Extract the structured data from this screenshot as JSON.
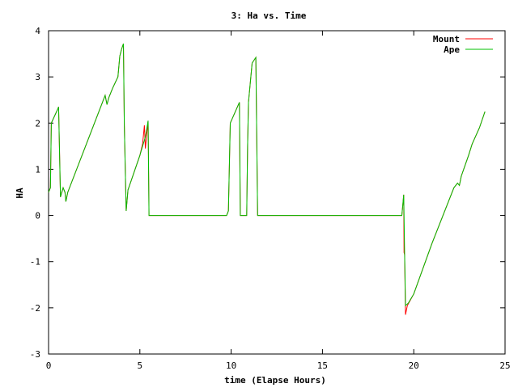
{
  "chart_data": {
    "type": "line",
    "title": "3: Ha vs. Time",
    "xlabel": "time (Elapse Hours)",
    "ylabel": "HA",
    "xlim": [
      0,
      25
    ],
    "ylim": [
      -3,
      4
    ],
    "xticks": [
      0,
      5,
      10,
      15,
      20,
      25
    ],
    "yticks": [
      -3,
      -2,
      -1,
      0,
      1,
      2,
      3,
      4
    ],
    "grid": false,
    "legend_position": "top-right",
    "series": [
      {
        "name": "Mount",
        "color": "#ff0000",
        "points": [
          [
            0,
            0.5
          ],
          [
            0.1,
            0.6
          ],
          [
            0.15,
            2.0
          ],
          [
            0.5,
            2.3
          ],
          [
            0.55,
            2.35
          ],
          [
            0.65,
            0.4
          ],
          [
            0.8,
            0.6
          ],
          [
            0.9,
            0.5
          ],
          [
            0.95,
            0.3
          ],
          [
            1.05,
            0.5
          ],
          [
            3.1,
            2.6
          ],
          [
            3.2,
            2.4
          ],
          [
            3.3,
            2.55
          ],
          [
            3.5,
            2.75
          ],
          [
            3.8,
            3.0
          ],
          [
            3.9,
            3.45
          ],
          [
            4.0,
            3.6
          ],
          [
            4.1,
            3.72
          ],
          [
            4.15,
            1.95
          ],
          [
            4.25,
            0.1
          ],
          [
            4.35,
            0.55
          ],
          [
            5.0,
            1.3
          ],
          [
            5.15,
            1.55
          ],
          [
            5.25,
            1.95
          ],
          [
            5.3,
            1.45
          ],
          [
            5.45,
            2.05
          ],
          [
            5.5,
            0.0
          ],
          [
            9.75,
            0.0
          ],
          [
            9.85,
            0.1
          ],
          [
            9.95,
            2.0
          ],
          [
            10.45,
            2.45
          ],
          [
            10.5,
            0.0
          ],
          [
            10.85,
            0.0
          ],
          [
            10.9,
            1.5
          ],
          [
            10.95,
            2.45
          ],
          [
            11.15,
            3.3
          ],
          [
            11.35,
            3.42
          ],
          [
            11.45,
            0.0
          ],
          [
            19.35,
            0.0
          ],
          [
            19.45,
            0.45
          ],
          [
            19.47,
            -0.8
          ],
          [
            19.5,
            -0.85
          ],
          [
            19.55,
            -2.15
          ],
          [
            19.65,
            -1.95
          ],
          [
            20.0,
            -1.7
          ],
          [
            21.0,
            -0.6
          ],
          [
            22.2,
            0.6
          ],
          [
            22.4,
            0.7
          ],
          [
            22.5,
            0.65
          ],
          [
            22.6,
            0.85
          ],
          [
            23.0,
            1.3
          ],
          [
            23.2,
            1.55
          ],
          [
            23.6,
            1.9
          ],
          [
            23.9,
            2.25
          ]
        ]
      },
      {
        "name": "Ape",
        "color": "#00c000",
        "points": [
          [
            0,
            0.5
          ],
          [
            0.1,
            0.6
          ],
          [
            0.15,
            2.0
          ],
          [
            0.5,
            2.3
          ],
          [
            0.55,
            2.35
          ],
          [
            0.65,
            0.4
          ],
          [
            0.8,
            0.6
          ],
          [
            0.9,
            0.5
          ],
          [
            0.95,
            0.3
          ],
          [
            1.05,
            0.5
          ],
          [
            3.1,
            2.6
          ],
          [
            3.2,
            2.4
          ],
          [
            3.3,
            2.55
          ],
          [
            3.5,
            2.75
          ],
          [
            3.8,
            3.0
          ],
          [
            3.9,
            3.45
          ],
          [
            4.0,
            3.6
          ],
          [
            4.1,
            3.72
          ],
          [
            4.15,
            1.95
          ],
          [
            4.25,
            0.1
          ],
          [
            4.35,
            0.55
          ],
          [
            5.0,
            1.3
          ],
          [
            5.3,
            1.7
          ],
          [
            5.45,
            2.05
          ],
          [
            5.5,
            0.0
          ],
          [
            9.75,
            0.0
          ],
          [
            9.85,
            0.1
          ],
          [
            9.95,
            2.0
          ],
          [
            10.45,
            2.45
          ],
          [
            10.5,
            0.0
          ],
          [
            10.85,
            0.0
          ],
          [
            10.9,
            1.5
          ],
          [
            10.95,
            2.45
          ],
          [
            11.15,
            3.3
          ],
          [
            11.35,
            3.42
          ],
          [
            11.45,
            0.0
          ],
          [
            19.35,
            0.0
          ],
          [
            19.45,
            0.45
          ],
          [
            19.5,
            -0.8
          ],
          [
            19.55,
            -1.95
          ],
          [
            19.7,
            -1.9
          ],
          [
            20.0,
            -1.7
          ],
          [
            21.0,
            -0.6
          ],
          [
            22.2,
            0.6
          ],
          [
            22.4,
            0.7
          ],
          [
            22.5,
            0.65
          ],
          [
            22.6,
            0.85
          ],
          [
            23.0,
            1.3
          ],
          [
            23.2,
            1.55
          ],
          [
            23.6,
            1.9
          ],
          [
            23.9,
            2.25
          ]
        ]
      }
    ]
  }
}
